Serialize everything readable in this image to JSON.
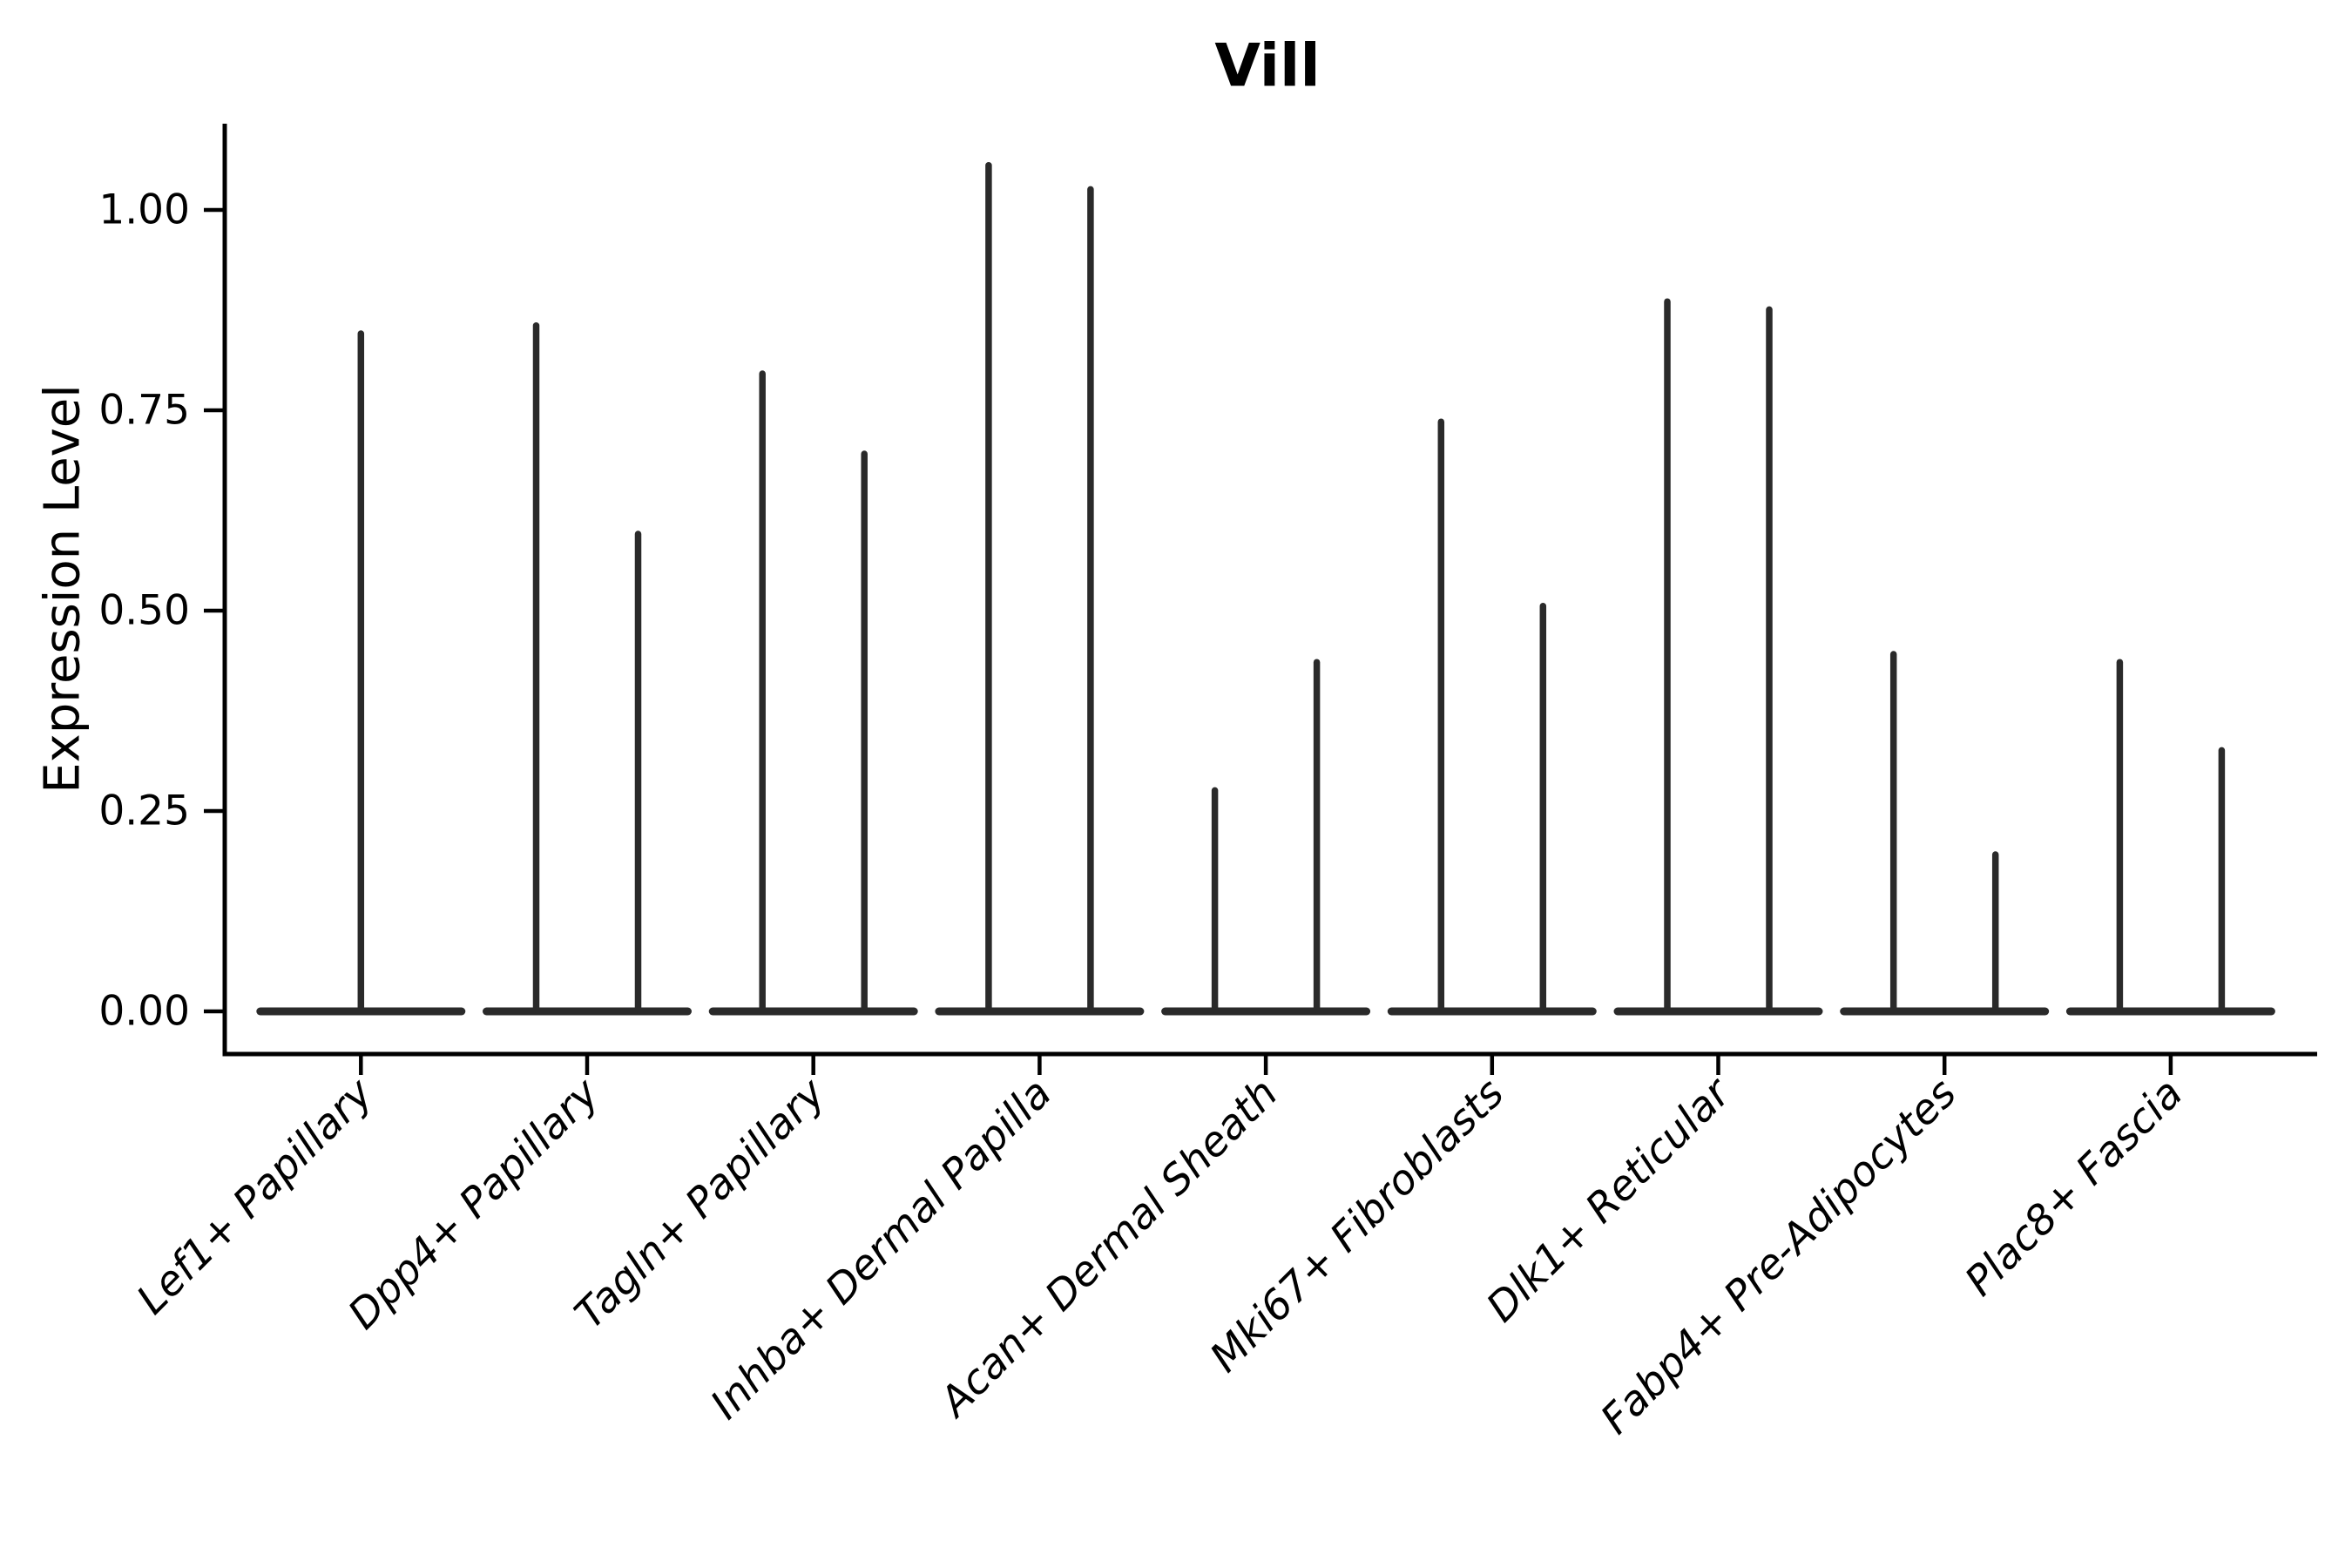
{
  "chart_data": {
    "type": "violin",
    "title": "Vill",
    "ylabel": "Expression Level",
    "xlabel": "",
    "grid": false,
    "legend": "none",
    "violin_color": "#2a2a2a",
    "axis_color": "#000000",
    "ylim": [
      -0.053,
      1.108
    ],
    "yticks": [
      {
        "value": 0.0,
        "label": "0.00"
      },
      {
        "value": 0.25,
        "label": "0.25"
      },
      {
        "value": 0.5,
        "label": "0.50"
      },
      {
        "value": 0.75,
        "label": "0.75"
      },
      {
        "value": 1.0,
        "label": "1.00"
      }
    ],
    "categories": [
      {
        "label": "Lef1+ Papillary",
        "violin_peaks": [
          0.85
        ]
      },
      {
        "label": "Dpp4+ Papillary",
        "violin_peaks": [
          0.86,
          0.6
        ]
      },
      {
        "label": "Tagln+ Papillary",
        "violin_peaks": [
          0.8,
          0.7
        ]
      },
      {
        "label": "Inhba+ Dermal Papilla",
        "violin_peaks": [
          1.06,
          1.03
        ]
      },
      {
        "label": "Acan+ Dermal Sheath",
        "violin_peaks": [
          0.28,
          0.44
        ]
      },
      {
        "label": "Mki67+ Fibroblasts",
        "violin_peaks": [
          0.74,
          0.51
        ]
      },
      {
        "label": "Dlk1+ Reticular",
        "violin_peaks": [
          0.89,
          0.88
        ]
      },
      {
        "label": "Fabp4+ Pre-Adipocytes",
        "violin_peaks": [
          0.45,
          0.2
        ]
      },
      {
        "label": "Plac8+ Fascia",
        "violin_peaks": [
          0.44,
          0.33
        ]
      }
    ],
    "notes": "Violin plot; nearly all density mass at 0 giving flat baselines with thin max-value spikes. Category 1 has a single centered violin; all others have two violins."
  }
}
